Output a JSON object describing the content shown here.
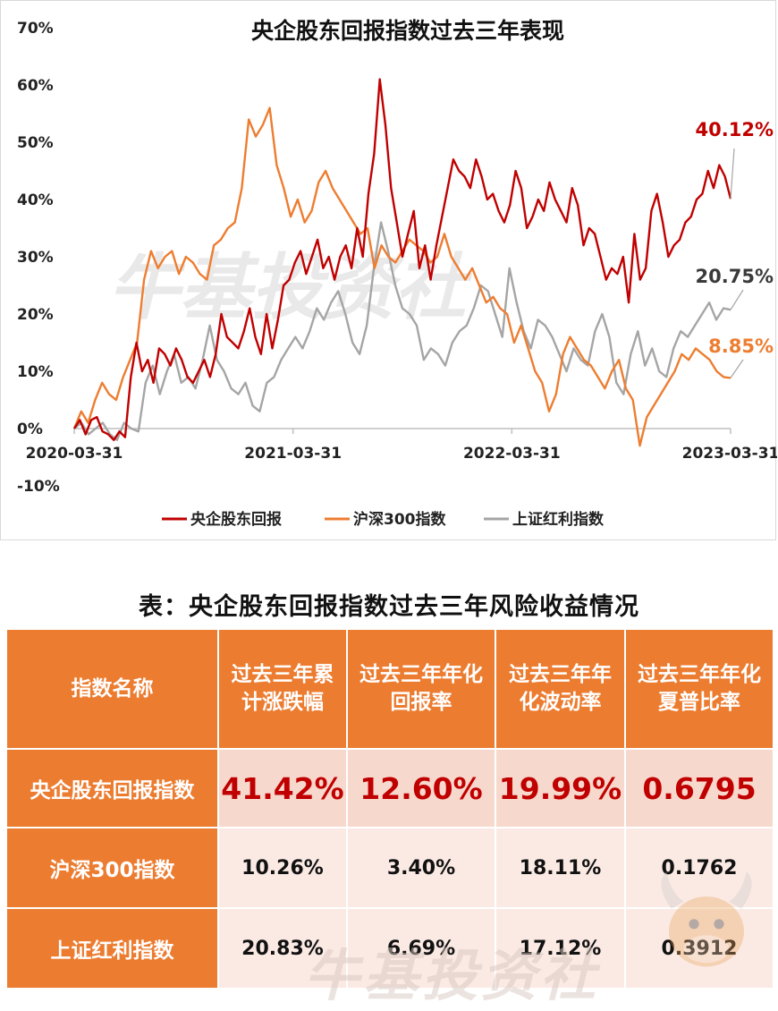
{
  "chart_data": {
    "type": "line",
    "title": "央企股东回报指数过去三年表现",
    "ylim": [
      -10,
      70
    ],
    "yticks": [
      "70%",
      "60%",
      "50%",
      "40%",
      "30%",
      "20%",
      "10%",
      "0%",
      "-10%"
    ],
    "xticks": [
      "2020-03-31",
      "2021-03-31",
      "2022-03-31",
      "2023-03-31"
    ],
    "legend_position": "bottom",
    "series": [
      {
        "name": "央企股东回报",
        "color": "#c00000",
        "end_label": "40.12%",
        "values": [
          [
            0,
            0
          ],
          [
            1,
            1.5
          ],
          [
            2,
            -1
          ],
          [
            3,
            1.5
          ],
          [
            4,
            2
          ],
          [
            5,
            -0.5
          ],
          [
            6,
            -1
          ],
          [
            7,
            -2
          ],
          [
            8,
            -0.5
          ],
          [
            9,
            -1.5
          ],
          [
            10,
            9
          ],
          [
            11,
            15
          ],
          [
            12,
            10
          ],
          [
            13,
            12
          ],
          [
            14,
            8
          ],
          [
            15,
            14
          ],
          [
            16,
            13
          ],
          [
            17,
            11
          ],
          [
            18,
            14
          ],
          [
            19,
            12
          ],
          [
            20,
            9
          ],
          [
            21,
            8
          ],
          [
            22,
            10
          ],
          [
            23,
            12
          ],
          [
            24,
            9
          ],
          [
            25,
            13
          ],
          [
            26,
            20
          ],
          [
            27,
            16
          ],
          [
            28,
            15
          ],
          [
            29,
            14
          ],
          [
            30,
            17
          ],
          [
            31,
            21
          ],
          [
            32,
            16
          ],
          [
            33,
            13
          ],
          [
            34,
            20
          ],
          [
            35,
            14
          ],
          [
            36,
            19
          ],
          [
            37,
            25
          ],
          [
            38,
            26
          ],
          [
            39,
            29
          ],
          [
            40,
            31
          ],
          [
            41,
            27
          ],
          [
            42,
            30
          ],
          [
            43,
            33
          ],
          [
            44,
            28
          ],
          [
            45,
            30
          ],
          [
            46,
            26
          ],
          [
            47,
            30
          ],
          [
            48,
            32
          ],
          [
            49,
            28
          ],
          [
            50,
            35
          ],
          [
            51,
            30
          ],
          [
            52,
            41
          ],
          [
            53,
            48
          ],
          [
            54,
            61
          ],
          [
            55,
            53
          ],
          [
            56,
            42
          ],
          [
            57,
            36
          ],
          [
            58,
            30
          ],
          [
            59,
            34
          ],
          [
            60,
            38
          ],
          [
            61,
            28
          ],
          [
            62,
            32
          ],
          [
            63,
            26
          ],
          [
            64,
            32
          ],
          [
            65,
            37
          ],
          [
            66,
            42
          ],
          [
            67,
            47
          ],
          [
            68,
            45
          ],
          [
            69,
            44
          ],
          [
            70,
            42
          ],
          [
            71,
            47
          ],
          [
            72,
            44
          ],
          [
            73,
            40
          ],
          [
            74,
            41
          ],
          [
            75,
            38
          ],
          [
            76,
            36
          ],
          [
            77,
            39
          ],
          [
            78,
            45
          ],
          [
            79,
            42
          ],
          [
            80,
            35
          ],
          [
            81,
            37
          ],
          [
            82,
            40
          ],
          [
            83,
            38
          ],
          [
            84,
            43
          ],
          [
            85,
            40
          ],
          [
            86,
            38
          ],
          [
            87,
            36
          ],
          [
            88,
            42
          ],
          [
            89,
            39
          ],
          [
            90,
            32
          ],
          [
            91,
            35
          ],
          [
            92,
            34
          ],
          [
            93,
            30
          ],
          [
            94,
            26
          ],
          [
            95,
            28
          ],
          [
            96,
            27
          ],
          [
            97,
            30
          ],
          [
            98,
            22
          ],
          [
            99,
            34
          ],
          [
            100,
            26
          ],
          [
            101,
            28
          ],
          [
            102,
            38
          ],
          [
            103,
            41
          ],
          [
            104,
            36
          ],
          [
            105,
            30
          ],
          [
            106,
            32
          ],
          [
            107,
            33
          ],
          [
            108,
            36
          ],
          [
            109,
            37
          ],
          [
            110,
            40
          ],
          [
            111,
            41
          ],
          [
            112,
            45
          ],
          [
            113,
            42
          ],
          [
            114,
            46
          ],
          [
            115,
            44
          ],
          [
            116,
            40.12
          ]
        ]
      },
      {
        "name": "沪深300指数",
        "color": "#ed7d31",
        "end_label": "8.85%",
        "values": [
          [
            0,
            0
          ],
          [
            1,
            3
          ],
          [
            2,
            1
          ],
          [
            3,
            5
          ],
          [
            4,
            8
          ],
          [
            5,
            6
          ],
          [
            6,
            5
          ],
          [
            7,
            9
          ],
          [
            8,
            12
          ],
          [
            9,
            15
          ],
          [
            10,
            26
          ],
          [
            11,
            31
          ],
          [
            12,
            28
          ],
          [
            13,
            30
          ],
          [
            14,
            31
          ],
          [
            15,
            27
          ],
          [
            16,
            30
          ],
          [
            17,
            29
          ],
          [
            18,
            27
          ],
          [
            19,
            26
          ],
          [
            20,
            32
          ],
          [
            21,
            33
          ],
          [
            22,
            35
          ],
          [
            23,
            36
          ],
          [
            24,
            42
          ],
          [
            25,
            54
          ],
          [
            26,
            51
          ],
          [
            27,
            53
          ],
          [
            28,
            56
          ],
          [
            29,
            46
          ],
          [
            30,
            42
          ],
          [
            31,
            37
          ],
          [
            32,
            40
          ],
          [
            33,
            36
          ],
          [
            34,
            38
          ],
          [
            35,
            43
          ],
          [
            36,
            45
          ],
          [
            37,
            42
          ],
          [
            38,
            40
          ],
          [
            39,
            38
          ],
          [
            40,
            36
          ],
          [
            41,
            34
          ],
          [
            42,
            35
          ],
          [
            43,
            28
          ],
          [
            44,
            32
          ],
          [
            45,
            30
          ],
          [
            46,
            29
          ],
          [
            47,
            31
          ],
          [
            48,
            33
          ],
          [
            49,
            32
          ],
          [
            50,
            31
          ],
          [
            51,
            29
          ],
          [
            52,
            30
          ],
          [
            53,
            34
          ],
          [
            54,
            30
          ],
          [
            55,
            28
          ],
          [
            56,
            26
          ],
          [
            57,
            28
          ],
          [
            58,
            25
          ],
          [
            59,
            22
          ],
          [
            60,
            23
          ],
          [
            61,
            21
          ],
          [
            62,
            20
          ],
          [
            63,
            15
          ],
          [
            64,
            18
          ],
          [
            65,
            14
          ],
          [
            66,
            10
          ],
          [
            67,
            8
          ],
          [
            68,
            3
          ],
          [
            69,
            6
          ],
          [
            70,
            13
          ],
          [
            71,
            16
          ],
          [
            72,
            14
          ],
          [
            73,
            12
          ],
          [
            74,
            11
          ],
          [
            75,
            9
          ],
          [
            76,
            7
          ],
          [
            77,
            10
          ],
          [
            78,
            12
          ],
          [
            79,
            7
          ],
          [
            80,
            5
          ],
          [
            81,
            -3
          ],
          [
            82,
            2
          ],
          [
            83,
            4
          ],
          [
            84,
            6
          ],
          [
            85,
            8
          ],
          [
            86,
            10
          ],
          [
            87,
            13
          ],
          [
            88,
            12
          ],
          [
            89,
            14
          ],
          [
            90,
            13
          ],
          [
            91,
            12
          ],
          [
            92,
            10
          ],
          [
            93,
            9
          ],
          [
            94,
            8.85
          ]
        ]
      },
      {
        "name": "上证红利指数",
        "color": "#a5a5a5",
        "end_label": "20.75%",
        "values": [
          [
            0,
            0
          ],
          [
            1,
            1
          ],
          [
            2,
            -1
          ],
          [
            3,
            0
          ],
          [
            4,
            1
          ],
          [
            5,
            -1
          ],
          [
            6,
            -2
          ],
          [
            7,
            1
          ],
          [
            8,
            0
          ],
          [
            9,
            -0.5
          ],
          [
            10,
            8
          ],
          [
            11,
            11
          ],
          [
            12,
            6
          ],
          [
            13,
            10
          ],
          [
            14,
            13
          ],
          [
            15,
            8
          ],
          [
            16,
            9
          ],
          [
            17,
            7
          ],
          [
            18,
            12
          ],
          [
            19,
            18
          ],
          [
            20,
            12
          ],
          [
            21,
            10
          ],
          [
            22,
            7
          ],
          [
            23,
            6
          ],
          [
            24,
            8
          ],
          [
            25,
            4
          ],
          [
            26,
            3
          ],
          [
            27,
            8
          ],
          [
            28,
            9
          ],
          [
            29,
            12
          ],
          [
            30,
            14
          ],
          [
            31,
            16
          ],
          [
            32,
            14
          ],
          [
            33,
            17
          ],
          [
            34,
            21
          ],
          [
            35,
            19
          ],
          [
            36,
            22
          ],
          [
            37,
            24
          ],
          [
            38,
            20
          ],
          [
            39,
            15
          ],
          [
            40,
            13
          ],
          [
            41,
            18
          ],
          [
            42,
            28
          ],
          [
            43,
            36
          ],
          [
            44,
            31
          ],
          [
            45,
            25
          ],
          [
            46,
            21
          ],
          [
            47,
            20
          ],
          [
            48,
            18
          ],
          [
            49,
            12
          ],
          [
            50,
            14
          ],
          [
            51,
            13
          ],
          [
            52,
            11
          ],
          [
            53,
            15
          ],
          [
            54,
            17
          ],
          [
            55,
            18
          ],
          [
            56,
            21
          ],
          [
            57,
            25
          ],
          [
            58,
            24
          ],
          [
            59,
            20
          ],
          [
            60,
            16
          ],
          [
            61,
            28
          ],
          [
            62,
            22
          ],
          [
            63,
            17
          ],
          [
            64,
            14
          ],
          [
            65,
            19
          ],
          [
            66,
            18
          ],
          [
            67,
            16
          ],
          [
            68,
            13
          ],
          [
            69,
            10
          ],
          [
            70,
            14
          ],
          [
            71,
            12
          ],
          [
            72,
            11
          ],
          [
            73,
            17
          ],
          [
            74,
            20
          ],
          [
            75,
            16
          ],
          [
            76,
            8
          ],
          [
            77,
            6
          ],
          [
            78,
            13
          ],
          [
            79,
            17
          ],
          [
            80,
            11
          ],
          [
            81,
            14
          ],
          [
            82,
            10
          ],
          [
            83,
            9
          ],
          [
            84,
            14
          ],
          [
            85,
            17
          ],
          [
            86,
            16
          ],
          [
            87,
            18
          ],
          [
            88,
            20
          ],
          [
            89,
            22
          ],
          [
            90,
            19
          ],
          [
            91,
            21
          ],
          [
            92,
            20.75
          ]
        ]
      }
    ]
  },
  "watermark_text": "牛基投资社",
  "table": {
    "title": "表：央企股东回报指数过去三年风险收益情况",
    "headers": [
      "指数名称",
      "过去三年累计涨跌幅",
      "过去三年年化回报率",
      "过去三年年化波动率",
      "过去三年年化夏普比率"
    ],
    "rows": [
      {
        "name": "央企股东回报指数",
        "values": [
          "41.42%",
          "12.60%",
          "19.99%",
          "0.6795"
        ]
      },
      {
        "name": "沪深300指数",
        "values": [
          "10.26%",
          "3.40%",
          "18.11%",
          "0.1762"
        ]
      },
      {
        "name": "上证红利指数",
        "values": [
          "20.83%",
          "6.69%",
          "17.12%",
          "0.3912"
        ]
      }
    ]
  }
}
